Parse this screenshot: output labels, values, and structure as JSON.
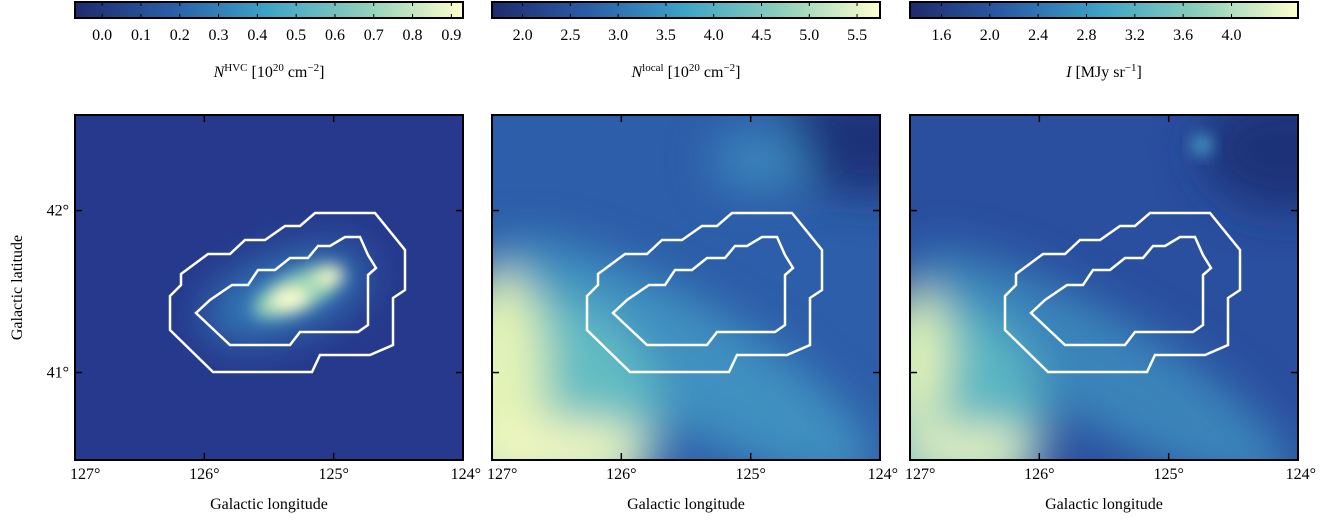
{
  "chart_data": [
    {
      "type": "image",
      "colorbar_label": [
        {
          "text": "N",
          "style": "italic"
        },
        {
          "text": "HVC",
          "style": "sup"
        },
        {
          "text": " [10"
        },
        {
          "text": "20",
          "style": "sup"
        },
        {
          "text": " cm"
        },
        {
          "text": "−2",
          "style": "sup"
        },
        {
          "text": "]"
        }
      ],
      "clim": [
        -0.07,
        0.93
      ],
      "cticks": [
        {
          "value": 0,
          "label": "0.0"
        },
        0.1,
        0.2,
        0.3,
        0.4,
        0.5,
        0.6,
        0.7,
        0.8,
        0.9
      ],
      "colormap": [
        "#1f2a6c",
        "#2a5ea8",
        "#3ea4c6",
        "#8ed0bb",
        "#ffffcc"
      ],
      "xlabel": "Galactic longitude",
      "ylabel": "Galactic latitude",
      "xlim": [
        127,
        124
      ],
      "ylim": [
        40.46,
        42.59
      ],
      "xticks": [
        {
          "value": 127,
          "label": "127°"
        },
        {
          "value": 126,
          "label": "126°"
        },
        {
          "value": 125,
          "label": "125°"
        },
        {
          "value": 124,
          "label": "124°"
        }
      ],
      "yticks": [
        {
          "value": 41,
          "label": "41°"
        },
        {
          "value": 42,
          "label": "42°"
        }
      ]
    },
    {
      "type": "image",
      "colorbar_label": [
        {
          "text": "N",
          "style": "italic"
        },
        {
          "text": "local",
          "style": "sup"
        },
        {
          "text": " [10"
        },
        {
          "text": "20",
          "style": "sup"
        },
        {
          "text": " cm"
        },
        {
          "text": "−2",
          "style": "sup"
        },
        {
          "text": "]"
        }
      ],
      "clim": [
        1.68,
        5.74
      ],
      "cticks": [
        {
          "value": 2,
          "label": "2.0"
        },
        2.5,
        {
          "value": 3,
          "label": "3.0"
        },
        3.5,
        {
          "value": 4,
          "label": "4.0"
        },
        4.5,
        {
          "value": 5,
          "label": "5.0"
        },
        5.5
      ],
      "colormap": [
        "#1f2a6c",
        "#2a5ea8",
        "#3ea4c6",
        "#8ed0bb",
        "#ffffcc"
      ],
      "xlabel": "Galactic longitude",
      "xlim": [
        127,
        124
      ],
      "ylim": [
        40.46,
        42.59
      ],
      "xticks": [
        {
          "value": 127,
          "label": "127°"
        },
        {
          "value": 126,
          "label": "126°"
        },
        {
          "value": 125,
          "label": "125°"
        },
        {
          "value": 124,
          "label": "124°"
        }
      ],
      "yticks": [
        41,
        42
      ]
    },
    {
      "type": "image",
      "colorbar_label": [
        {
          "text": "I",
          "style": "italic"
        },
        {
          "text": " [MJy sr"
        },
        {
          "text": "−1",
          "style": "sup"
        },
        {
          "text": "]"
        }
      ],
      "clim": [
        1.34,
        4.55
      ],
      "cticks": [
        1.6,
        {
          "value": 2,
          "label": "2.0"
        },
        2.4,
        2.8,
        3.2,
        3.6,
        {
          "value": 4,
          "label": "4.0"
        }
      ],
      "colormap": [
        "#1f2a6c",
        "#2a5ea8",
        "#3ea4c6",
        "#8ed0bb",
        "#ffffcc"
      ],
      "xlabel": "Galactic longitude",
      "xlim": [
        127,
        124
      ],
      "ylim": [
        40.46,
        42.59
      ],
      "xticks": [
        {
          "value": 127,
          "label": "127°"
        },
        {
          "value": 126,
          "label": "126°"
        },
        {
          "value": 125,
          "label": "125°"
        },
        {
          "value": 124,
          "label": "124°"
        }
      ],
      "yticks": [
        41,
        42
      ]
    }
  ]
}
